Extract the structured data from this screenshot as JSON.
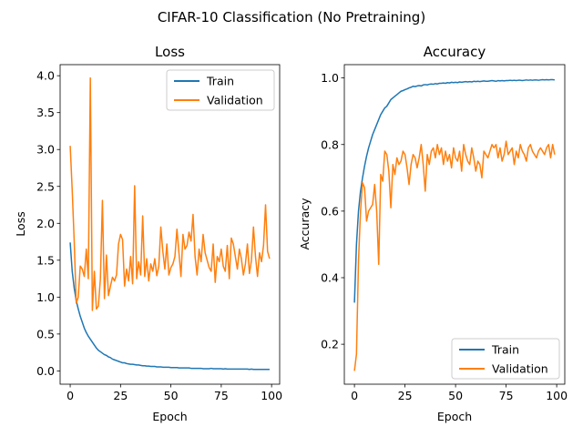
{
  "figure": {
    "suptitle": "CIFAR-10 Classification (No Pretraining)"
  },
  "colors": {
    "train": "#1f77b4",
    "validation": "#ff7f0e",
    "frame": "#000000",
    "legend_border": "#cccccc"
  },
  "chart_data": [
    {
      "type": "line",
      "title": "Loss",
      "xlabel": "Epoch",
      "ylabel": "Loss",
      "xlim": [
        -5,
        104
      ],
      "ylim": [
        -0.18,
        4.15
      ],
      "xticks": [
        0,
        25,
        50,
        75,
        100
      ],
      "yticks": [
        0.0,
        0.5,
        1.0,
        1.5,
        2.0,
        2.5,
        3.0,
        3.5,
        4.0
      ],
      "ytick_labels": [
        "0.0",
        "0.5",
        "1.0",
        "1.5",
        "2.0",
        "2.5",
        "3.0",
        "3.5",
        "4.0"
      ],
      "grid": false,
      "legend": "upper-right",
      "series": [
        {
          "name": "Train",
          "color_key": "train",
          "x": [
            0,
            1,
            2,
            3,
            4,
            5,
            6,
            7,
            8,
            9,
            10,
            11,
            12,
            13,
            14,
            15,
            16,
            17,
            18,
            19,
            20,
            21,
            22,
            23,
            24,
            25,
            26,
            27,
            28,
            29,
            30,
            31,
            32,
            33,
            34,
            35,
            36,
            37,
            38,
            39,
            40,
            41,
            42,
            43,
            44,
            45,
            46,
            47,
            48,
            49,
            50,
            51,
            52,
            53,
            54,
            55,
            56,
            57,
            58,
            59,
            60,
            61,
            62,
            63,
            64,
            65,
            66,
            67,
            68,
            69,
            70,
            71,
            72,
            73,
            74,
            75,
            76,
            77,
            78,
            79,
            80,
            81,
            82,
            83,
            84,
            85,
            86,
            87,
            88,
            89,
            90,
            91,
            92,
            93,
            94,
            95,
            96,
            97,
            98,
            99
          ],
          "values": [
            1.74,
            1.35,
            1.12,
            0.95,
            0.84,
            0.74,
            0.66,
            0.58,
            0.52,
            0.47,
            0.43,
            0.39,
            0.35,
            0.31,
            0.28,
            0.26,
            0.24,
            0.22,
            0.21,
            0.19,
            0.18,
            0.16,
            0.15,
            0.14,
            0.13,
            0.12,
            0.11,
            0.11,
            0.1,
            0.095,
            0.09,
            0.09,
            0.085,
            0.08,
            0.08,
            0.075,
            0.07,
            0.07,
            0.065,
            0.065,
            0.06,
            0.06,
            0.06,
            0.055,
            0.055,
            0.055,
            0.05,
            0.05,
            0.05,
            0.05,
            0.045,
            0.045,
            0.045,
            0.045,
            0.04,
            0.04,
            0.04,
            0.04,
            0.04,
            0.04,
            0.035,
            0.035,
            0.035,
            0.035,
            0.035,
            0.035,
            0.03,
            0.03,
            0.03,
            0.03,
            0.035,
            0.03,
            0.03,
            0.03,
            0.03,
            0.03,
            0.025,
            0.03,
            0.025,
            0.025,
            0.025,
            0.025,
            0.025,
            0.025,
            0.025,
            0.025,
            0.025,
            0.025,
            0.025,
            0.02,
            0.025,
            0.02,
            0.02,
            0.02,
            0.02,
            0.02,
            0.02,
            0.02,
            0.02,
            0.02
          ]
        },
        {
          "name": "Validation",
          "color_key": "validation",
          "x": [
            0,
            1,
            2,
            3,
            4,
            5,
            6,
            7,
            8,
            9,
            10,
            11,
            12,
            13,
            14,
            15,
            16,
            17,
            18,
            19,
            20,
            21,
            22,
            23,
            24,
            25,
            26,
            27,
            28,
            29,
            30,
            31,
            32,
            33,
            34,
            35,
            36,
            37,
            38,
            39,
            40,
            41,
            42,
            43,
            44,
            45,
            46,
            47,
            48,
            49,
            50,
            51,
            52,
            53,
            54,
            55,
            56,
            57,
            58,
            59,
            60,
            61,
            62,
            63,
            64,
            65,
            66,
            67,
            68,
            69,
            70,
            71,
            72,
            73,
            74,
            75,
            76,
            77,
            78,
            79,
            80,
            81,
            82,
            83,
            84,
            85,
            86,
            87,
            88,
            89,
            90,
            91,
            92,
            93,
            94,
            95,
            96,
            97,
            98,
            99
          ],
          "values": [
            3.05,
            2.45,
            1.75,
            0.92,
            1.0,
            1.42,
            1.38,
            1.28,
            1.65,
            1.25,
            3.97,
            0.82,
            1.35,
            0.84,
            0.88,
            1.25,
            2.31,
            0.98,
            1.57,
            1.02,
            1.15,
            1.27,
            1.22,
            1.3,
            1.72,
            1.85,
            1.78,
            1.15,
            1.38,
            1.22,
            1.55,
            1.18,
            2.51,
            1.25,
            1.48,
            1.3,
            2.1,
            1.28,
            1.52,
            1.22,
            1.45,
            1.35,
            1.52,
            1.29,
            1.42,
            1.95,
            1.62,
            1.38,
            1.72,
            1.3,
            1.4,
            1.45,
            1.55,
            1.92,
            1.6,
            1.28,
            1.85,
            1.65,
            1.7,
            1.88,
            1.76,
            2.12,
            1.55,
            1.3,
            1.65,
            1.48,
            1.85,
            1.6,
            1.5,
            1.4,
            1.35,
            1.72,
            1.2,
            1.55,
            1.48,
            1.65,
            1.42,
            1.35,
            1.7,
            1.25,
            1.8,
            1.72,
            1.55,
            1.38,
            1.65,
            1.52,
            1.3,
            1.45,
            1.72,
            1.32,
            1.5,
            1.95,
            1.55,
            1.28,
            1.6,
            1.48,
            1.7,
            2.25,
            1.62,
            1.52
          ]
        }
      ]
    },
    {
      "type": "line",
      "title": "Accuracy",
      "xlabel": "Epoch",
      "ylabel": "Accuracy",
      "xlim": [
        -5,
        104
      ],
      "ylim": [
        0.08,
        1.04
      ],
      "xticks": [
        0,
        25,
        50,
        75,
        100
      ],
      "yticks": [
        0.2,
        0.4,
        0.6,
        0.8,
        1.0
      ],
      "ytick_labels": [
        "0.2",
        "0.4",
        "0.6",
        "0.8",
        "1.0"
      ],
      "grid": false,
      "legend": "lower-right",
      "series": [
        {
          "name": "Train",
          "color_key": "train",
          "x": [
            0,
            1,
            2,
            3,
            4,
            5,
            6,
            7,
            8,
            9,
            10,
            11,
            12,
            13,
            14,
            15,
            16,
            17,
            18,
            19,
            20,
            21,
            22,
            23,
            24,
            25,
            26,
            27,
            28,
            29,
            30,
            31,
            32,
            33,
            34,
            35,
            36,
            37,
            38,
            39,
            40,
            41,
            42,
            43,
            44,
            45,
            46,
            47,
            48,
            49,
            50,
            51,
            52,
            53,
            54,
            55,
            56,
            57,
            58,
            59,
            60,
            61,
            62,
            63,
            64,
            65,
            66,
            67,
            68,
            69,
            70,
            71,
            72,
            73,
            74,
            75,
            76,
            77,
            78,
            79,
            80,
            81,
            82,
            83,
            84,
            85,
            86,
            87,
            88,
            89,
            90,
            91,
            92,
            93,
            94,
            95,
            96,
            97,
            98,
            99
          ],
          "values": [
            0.325,
            0.5,
            0.6,
            0.66,
            0.7,
            0.735,
            0.765,
            0.79,
            0.81,
            0.83,
            0.845,
            0.86,
            0.875,
            0.89,
            0.9,
            0.91,
            0.915,
            0.925,
            0.935,
            0.94,
            0.945,
            0.95,
            0.955,
            0.96,
            0.962,
            0.965,
            0.967,
            0.97,
            0.972,
            0.975,
            0.974,
            0.976,
            0.977,
            0.976,
            0.979,
            0.98,
            0.979,
            0.981,
            0.982,
            0.981,
            0.983,
            0.982,
            0.984,
            0.984,
            0.985,
            0.984,
            0.986,
            0.985,
            0.987,
            0.986,
            0.987,
            0.986,
            0.988,
            0.987,
            0.988,
            0.989,
            0.988,
            0.989,
            0.988,
            0.99,
            0.989,
            0.99,
            0.989,
            0.99,
            0.991,
            0.99,
            0.99,
            0.991,
            0.992,
            0.991,
            0.99,
            0.992,
            0.991,
            0.992,
            0.991,
            0.992,
            0.992,
            0.993,
            0.992,
            0.993,
            0.992,
            0.993,
            0.993,
            0.992,
            0.993,
            0.994,
            0.993,
            0.994,
            0.993,
            0.994,
            0.994,
            0.993,
            0.994,
            0.995,
            0.994,
            0.995,
            0.994,
            0.995,
            0.995,
            0.994
          ]
        },
        {
          "name": "Validation",
          "color_key": "validation",
          "x": [
            0,
            1,
            2,
            3,
            4,
            5,
            6,
            7,
            8,
            9,
            10,
            11,
            12,
            13,
            14,
            15,
            16,
            17,
            18,
            19,
            20,
            21,
            22,
            23,
            24,
            25,
            26,
            27,
            28,
            29,
            30,
            31,
            32,
            33,
            34,
            35,
            36,
            37,
            38,
            39,
            40,
            41,
            42,
            43,
            44,
            45,
            46,
            47,
            48,
            49,
            50,
            51,
            52,
            53,
            54,
            55,
            56,
            57,
            58,
            59,
            60,
            61,
            62,
            63,
            64,
            65,
            66,
            67,
            68,
            69,
            70,
            71,
            72,
            73,
            74,
            75,
            76,
            77,
            78,
            79,
            80,
            81,
            82,
            83,
            84,
            85,
            86,
            87,
            88,
            89,
            90,
            91,
            92,
            93,
            94,
            95,
            96,
            97,
            98,
            99
          ],
          "values": [
            0.12,
            0.17,
            0.45,
            0.6,
            0.685,
            0.67,
            0.57,
            0.6,
            0.61,
            0.62,
            0.68,
            0.6,
            0.44,
            0.71,
            0.69,
            0.78,
            0.77,
            0.72,
            0.61,
            0.74,
            0.71,
            0.76,
            0.74,
            0.75,
            0.78,
            0.77,
            0.73,
            0.68,
            0.74,
            0.77,
            0.76,
            0.73,
            0.76,
            0.8,
            0.74,
            0.66,
            0.77,
            0.74,
            0.78,
            0.79,
            0.76,
            0.8,
            0.77,
            0.79,
            0.74,
            0.78,
            0.75,
            0.77,
            0.73,
            0.79,
            0.76,
            0.75,
            0.78,
            0.72,
            0.8,
            0.77,
            0.75,
            0.74,
            0.79,
            0.76,
            0.72,
            0.75,
            0.74,
            0.7,
            0.78,
            0.77,
            0.76,
            0.78,
            0.8,
            0.79,
            0.8,
            0.76,
            0.79,
            0.75,
            0.77,
            0.81,
            0.77,
            0.78,
            0.79,
            0.74,
            0.78,
            0.76,
            0.8,
            0.78,
            0.77,
            0.75,
            0.79,
            0.8,
            0.78,
            0.77,
            0.76,
            0.78,
            0.79,
            0.78,
            0.77,
            0.79,
            0.8,
            0.76,
            0.8,
            0.77
          ]
        }
      ]
    }
  ]
}
